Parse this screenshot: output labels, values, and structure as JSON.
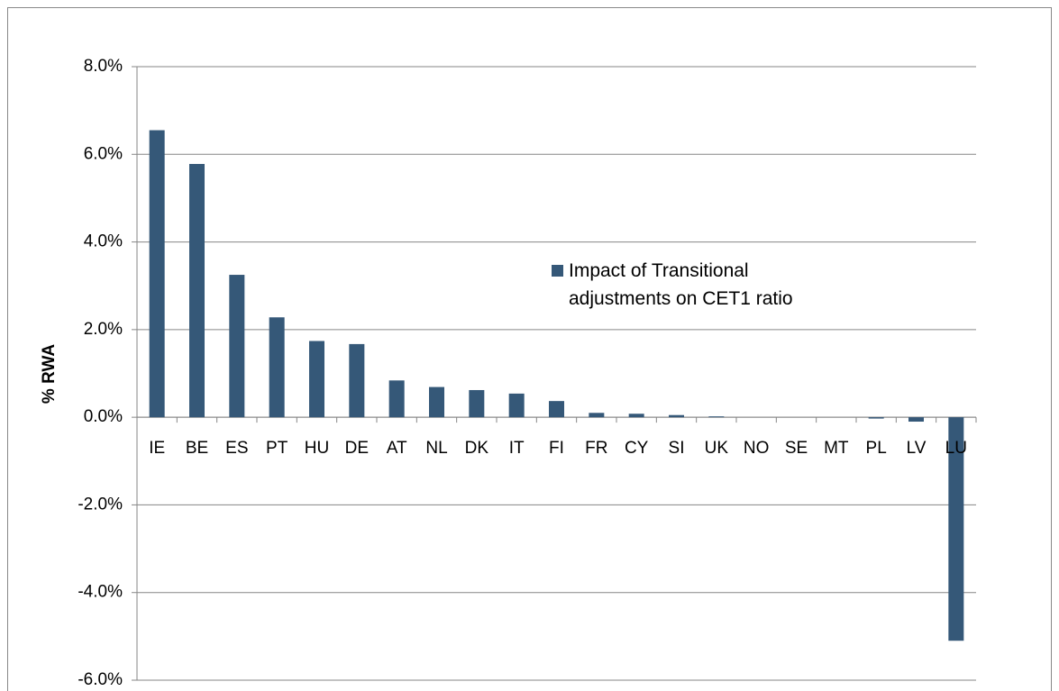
{
  "chart_data": {
    "type": "bar",
    "y_label": "% RWA",
    "categories": [
      "IE",
      "BE",
      "ES",
      "PT",
      "HU",
      "DE",
      "AT",
      "NL",
      "DK",
      "IT",
      "FI",
      "FR",
      "CY",
      "SI",
      "UK",
      "NO",
      "SE",
      "MT",
      "PL",
      "LV",
      "LU"
    ],
    "series": [
      {
        "name": "Impact of Transitional adjustments on CET1 ratio",
        "color": "#355878",
        "values": [
          6.55,
          5.78,
          3.25,
          2.28,
          1.74,
          1.67,
          0.84,
          0.69,
          0.62,
          0.54,
          0.37,
          0.1,
          0.08,
          0.05,
          0.02,
          0,
          0,
          0,
          -0.03,
          -0.1,
          -5.1
        ]
      }
    ],
    "ylim": [
      -6,
      8
    ],
    "yticks": [
      {
        "value": -6,
        "label": "-6.0%"
      },
      {
        "value": -4,
        "label": "-4.0%"
      },
      {
        "value": -2,
        "label": "-2.0%"
      },
      {
        "value": 0,
        "label": "0.0%"
      },
      {
        "value": 2,
        "label": "2.0%"
      },
      {
        "value": 4,
        "label": "4.0%"
      },
      {
        "value": 6,
        "label": "6.0%"
      },
      {
        "value": 8,
        "label": "8.0%"
      }
    ],
    "grid": true
  }
}
